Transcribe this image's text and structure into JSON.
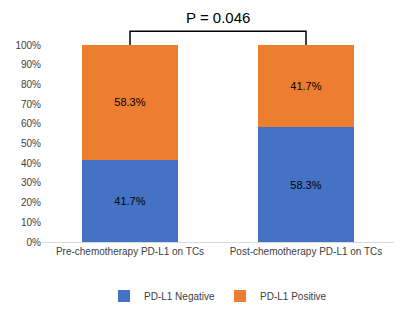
{
  "chart_data": {
    "type": "bar",
    "stacked": true,
    "categories": [
      "Pre-chemotherapy PD-L1 on TCs",
      "Post-chemotherapy PD-L1 on TCs"
    ],
    "series": [
      {
        "name": "PD-L1 Negative",
        "color": "#4472c4",
        "values": [
          41.7,
          58.3
        ],
        "value_labels": [
          "41.7%",
          "58.3%"
        ]
      },
      {
        "name": "PD-L1 Positive",
        "color": "#ed7d31",
        "values": [
          58.3,
          41.7
        ],
        "value_labels": [
          "58.3%",
          "41.7%"
        ]
      }
    ],
    "data_labels": true,
    "ylim": [
      0,
      100
    ],
    "yticks": [
      {
        "value": 0,
        "label": "0%"
      },
      {
        "value": 10,
        "label": "10%"
      },
      {
        "value": 20,
        "label": "20%"
      },
      {
        "value": 30,
        "label": "30%"
      },
      {
        "value": 40,
        "label": "40%"
      },
      {
        "value": 50,
        "label": "50%"
      },
      {
        "value": 60,
        "label": "60%"
      },
      {
        "value": 70,
        "label": "70%"
      },
      {
        "value": 80,
        "label": "80%"
      },
      {
        "value": 90,
        "label": "90%"
      },
      {
        "value": 100,
        "label": "100%"
      }
    ],
    "grid": false,
    "legend": "bottom",
    "annotations": [
      {
        "text": "P = 0.046"
      }
    ]
  }
}
